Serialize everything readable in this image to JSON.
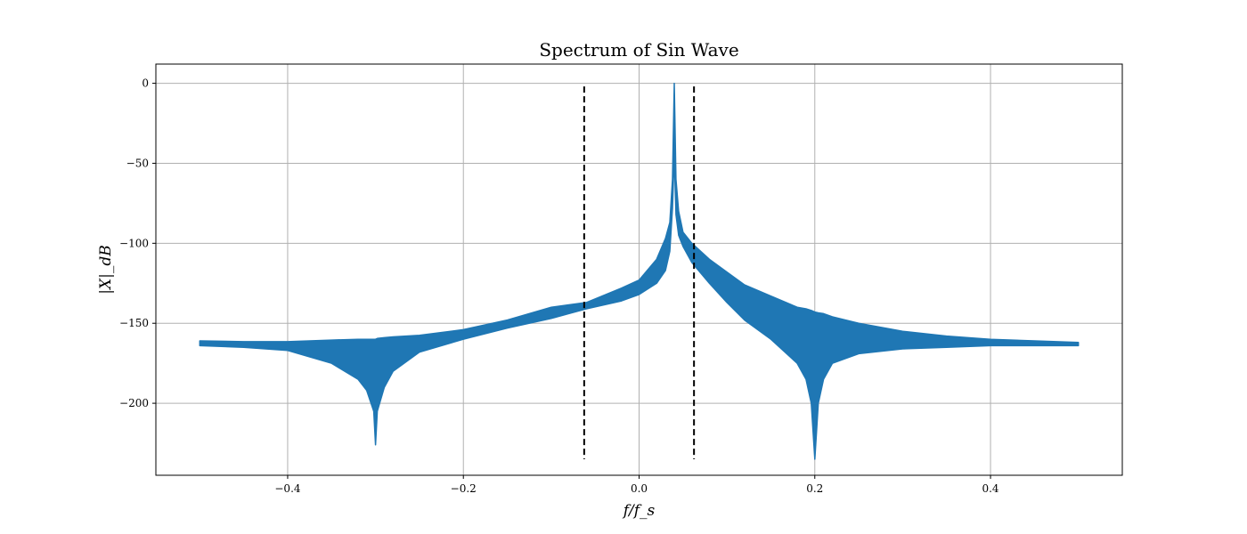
{
  "chart_data": {
    "type": "line",
    "title": "Spectrum of Sin Wave",
    "xlabel": "f/f_s",
    "ylabel": "|X|_dB",
    "xlim": [
      -0.55,
      0.55
    ],
    "ylim": [
      -245,
      12
    ],
    "grid": true,
    "xticks": [
      -0.4,
      -0.2,
      0.0,
      0.2,
      0.4
    ],
    "xtick_labels": [
      "−0.4",
      "−0.2",
      "0.0",
      "0.2",
      "0.4"
    ],
    "yticks": [
      0,
      -50,
      -100,
      -150,
      -200
    ],
    "ytick_labels": [
      "0",
      "−50",
      "−100",
      "−150",
      "−200"
    ],
    "series": [
      {
        "color": "#1f77b4",
        "style": "filled-band",
        "envelope_x": [
          -0.5,
          -0.45,
          -0.4,
          -0.35,
          -0.32,
          -0.31,
          -0.302,
          -0.3,
          -0.298,
          -0.29,
          -0.28,
          -0.25,
          -0.2,
          -0.15,
          -0.1,
          -0.06,
          -0.02,
          0.0,
          0.02,
          0.03,
          0.035,
          0.038,
          0.04,
          0.042,
          0.045,
          0.05,
          0.06,
          0.08,
          0.1,
          0.12,
          0.15,
          0.18,
          0.19,
          0.196,
          0.2,
          0.204,
          0.21,
          0.22,
          0.25,
          0.3,
          0.35,
          0.4,
          0.45,
          0.5
        ],
        "envelope_upper": [
          -161,
          -161.5,
          -161.5,
          -160.5,
          -160,
          -160,
          -160,
          -160,
          -159.5,
          -159,
          -158.5,
          -157.5,
          -154,
          -148,
          -140,
          -137,
          -128,
          -123,
          -110,
          -97,
          -87,
          -60,
          0,
          -60,
          -80,
          -93,
          -100,
          -110,
          -118,
          -126,
          -133,
          -140,
          -141,
          -142,
          -143,
          -143.5,
          -144,
          -146,
          -150,
          -155,
          -158,
          -160,
          -161,
          -162
        ],
        "envelope_lower": [
          -164,
          -165,
          -167,
          -175,
          -185,
          -192,
          -205,
          -226,
          -205,
          -190,
          -180,
          -168,
          -160,
          -153,
          -147,
          -141,
          -136,
          -132,
          -125,
          -117,
          -105,
          -78,
          -45,
          -82,
          -95,
          -102,
          -112,
          -125,
          -137,
          -148,
          -160,
          -175,
          -185,
          -200,
          -235,
          -200,
          -185,
          -175,
          -169,
          -166,
          -165,
          -164,
          -164,
          -164
        ]
      }
    ],
    "vlines": [
      {
        "x": -0.0625,
        "ymin": -235,
        "ymax": -2,
        "style": "dashed",
        "color": "#000000"
      },
      {
        "x": 0.0625,
        "ymin": -235,
        "ymax": -2,
        "style": "dashed",
        "color": "#000000"
      }
    ]
  }
}
